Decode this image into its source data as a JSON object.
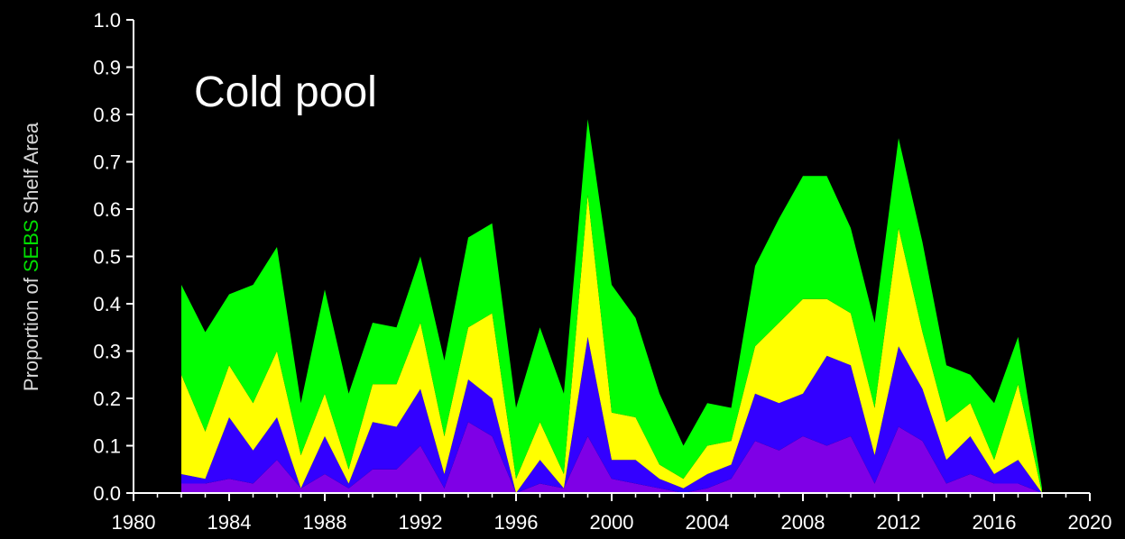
{
  "chart_data": {
    "type": "stacked_area",
    "annotation": "Cold pool",
    "ylabel": {
      "before": "Proportion of",
      "highlight": "SEBS",
      "after": "Shelf Area"
    },
    "highlight_color": "#00e000",
    "x": [
      1982,
      1983,
      1984,
      1985,
      1986,
      1987,
      1988,
      1989,
      1990,
      1991,
      1992,
      1993,
      1994,
      1995,
      1996,
      1997,
      1998,
      1999,
      2000,
      2001,
      2002,
      2003,
      2004,
      2005,
      2006,
      2007,
      2008,
      2009,
      2010,
      2011,
      2012,
      2013,
      2014,
      2015,
      2016,
      2017,
      2018
    ],
    "series": [
      {
        "color": "#7f00e6",
        "values": [
          0.02,
          0.02,
          0.03,
          0.02,
          0.07,
          0.01,
          0.04,
          0.01,
          0.05,
          0.05,
          0.1,
          0.01,
          0.15,
          0.12,
          0.0,
          0.02,
          0.01,
          0.12,
          0.03,
          0.02,
          0.01,
          0.0,
          0.01,
          0.03,
          0.11,
          0.09,
          0.12,
          0.1,
          0.12,
          0.02,
          0.14,
          0.11,
          0.02,
          0.04,
          0.02,
          0.02,
          0
        ]
      },
      {
        "color": "#3300ff",
        "values": [
          0.02,
          0.01,
          0.13,
          0.07,
          0.09,
          0.0,
          0.08,
          0.01,
          0.1,
          0.09,
          0.12,
          0.03,
          0.09,
          0.08,
          0.0,
          0.05,
          0.0,
          0.21,
          0.04,
          0.05,
          0.02,
          0.01,
          0.03,
          0.03,
          0.1,
          0.1,
          0.09,
          0.19,
          0.15,
          0.06,
          0.17,
          0.11,
          0.05,
          0.08,
          0.02,
          0.05,
          0
        ]
      },
      {
        "color": "#ffff00",
        "values": [
          0.21,
          0.1,
          0.11,
          0.1,
          0.14,
          0.07,
          0.09,
          0.03,
          0.08,
          0.09,
          0.14,
          0.08,
          0.11,
          0.18,
          0.03,
          0.08,
          0.03,
          0.3,
          0.1,
          0.09,
          0.03,
          0.02,
          0.06,
          0.05,
          0.1,
          0.17,
          0.2,
          0.12,
          0.11,
          0.1,
          0.25,
          0.12,
          0.08,
          0.07,
          0.03,
          0.16,
          0
        ]
      },
      {
        "color": "#00ff00",
        "values": [
          0.19,
          0.21,
          0.15,
          0.25,
          0.22,
          0.11,
          0.22,
          0.16,
          0.13,
          0.12,
          0.14,
          0.16,
          0.19,
          0.19,
          0.15,
          0.2,
          0.17,
          0.16,
          0.27,
          0.21,
          0.15,
          0.07,
          0.09,
          0.07,
          0.17,
          0.22,
          0.26,
          0.26,
          0.18,
          0.18,
          0.19,
          0.19,
          0.12,
          0.06,
          0.12,
          0.1,
          0.01
        ]
      }
    ],
    "xlim": [
      1980,
      2020
    ],
    "xticks": [
      1980,
      1984,
      1988,
      1992,
      1996,
      2000,
      2004,
      2008,
      2012,
      2016,
      2020
    ],
    "xminorticks": [
      1981,
      1982,
      1983,
      1985,
      1986,
      1987,
      1989,
      1990,
      1991,
      1993,
      1994,
      1995,
      1997,
      1998,
      1999,
      2001,
      2002,
      2003,
      2005,
      2006,
      2007,
      2009,
      2010,
      2011,
      2013,
      2014,
      2015,
      2017,
      2018,
      2019
    ],
    "ylim": [
      0,
      1
    ],
    "yticks": [
      {
        "value": 0,
        "label": "0.0"
      },
      0.1,
      0.2,
      0.3,
      0.4,
      0.5,
      0.6,
      0.7,
      0.8,
      0.9,
      {
        "value": 1,
        "label": "1.0"
      }
    ],
    "axis_color": "#ffffff"
  }
}
